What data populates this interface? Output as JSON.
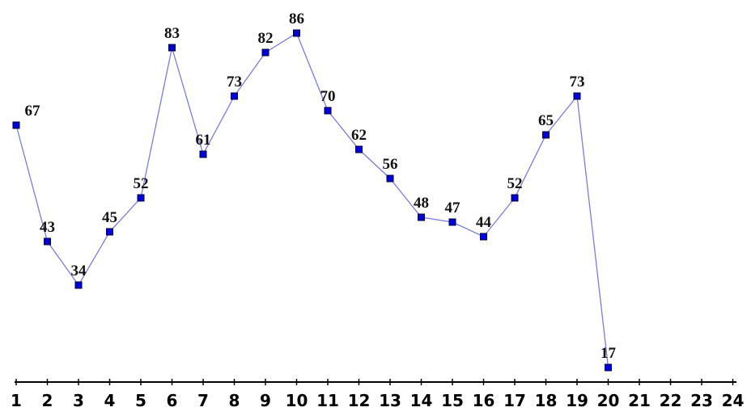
{
  "chart_data": {
    "type": "line",
    "categories": [
      "1",
      "2",
      "3",
      "4",
      "5",
      "6",
      "7",
      "8",
      "9",
      "10",
      "11",
      "12",
      "13",
      "14",
      "15",
      "16",
      "17",
      "18",
      "19",
      "20",
      "21",
      "22",
      "23",
      "24"
    ],
    "values": [
      67,
      43,
      34,
      45,
      52,
      83,
      61,
      73,
      82,
      86,
      70,
      62,
      56,
      48,
      47,
      44,
      52,
      65,
      73,
      17,
      null,
      null,
      null,
      null
    ],
    "line_color": "#7b7be6",
    "marker_color": "#0000dd",
    "ylim": [
      14,
      90
    ]
  }
}
